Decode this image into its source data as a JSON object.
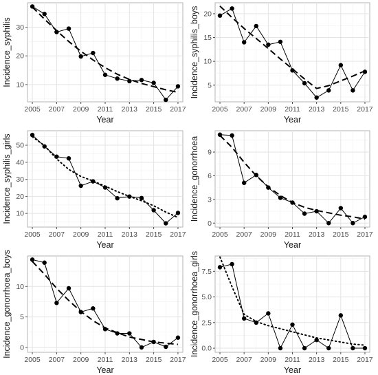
{
  "chart_data": [
    {
      "type": "line",
      "xlabel": "Year",
      "ylabel": "Incidence_syphilis",
      "x": [
        2005,
        2006,
        2007,
        2008,
        2009,
        2010,
        2011,
        2012,
        2013,
        2014,
        2015,
        2016,
        2017
      ],
      "xticks": [
        2005,
        2007,
        2009,
        2011,
        2013,
        2015,
        2017
      ],
      "xlim": [
        2004.6,
        2017.4
      ],
      "ylim": [
        4,
        38.5
      ],
      "yticks": [
        10,
        20,
        30
      ],
      "grid": true,
      "series": [
        {
          "style": "solid-points",
          "values": [
            37.2,
            34.6,
            28.3,
            29.5,
            19.8,
            21.0,
            13.4,
            12.1,
            11.2,
            11.6,
            10.6,
            4.7,
            9.4
          ]
        },
        {
          "style": "dashed-trend",
          "values": [
            37.0,
            32.8,
            28.8,
            25.0,
            21.6,
            18.6,
            15.9,
            13.6,
            11.8,
            10.4,
            9.3,
            8.2,
            7.3
          ]
        }
      ]
    },
    {
      "type": "line",
      "xlabel": "Year",
      "ylabel": "Incidence_syphilis_boys",
      "x": [
        2005,
        2006,
        2007,
        2008,
        2009,
        2010,
        2011,
        2012,
        2013,
        2014,
        2015,
        2016,
        2017
      ],
      "xticks": [
        2005,
        2007,
        2009,
        2011,
        2013,
        2015,
        2017
      ],
      "xlim": [
        2004.6,
        2017.4
      ],
      "ylim": [
        1.5,
        22.3
      ],
      "yticks": [
        5,
        10,
        15,
        20
      ],
      "grid": true,
      "series": [
        {
          "style": "solid-points",
          "values": [
            19.6,
            21.1,
            14.0,
            17.4,
            13.5,
            14.1,
            8.1,
            5.4,
            2.4,
            3.9,
            9.2,
            3.9,
            7.8
          ]
        },
        {
          "style": "dashed-trend",
          "values": [
            21.6,
            19.2,
            16.9,
            14.8,
            12.7,
            10.5,
            8.4,
            6.3,
            4.3,
            4.9,
            5.9,
            6.9,
            8.0
          ]
        }
      ]
    },
    {
      "type": "line",
      "xlabel": "Year",
      "ylabel": "Incidence_syphilis_girls",
      "x": [
        2005,
        2006,
        2007,
        2008,
        2009,
        2010,
        2011,
        2012,
        2013,
        2014,
        2015,
        2016,
        2017
      ],
      "xticks": [
        2005,
        2007,
        2009,
        2011,
        2013,
        2015,
        2017
      ],
      "xlim": [
        2004.6,
        2017.4
      ],
      "ylim": [
        2,
        58.5
      ],
      "yticks": [
        10,
        20,
        30,
        40,
        50
      ],
      "grid": true,
      "series": [
        {
          "style": "solid-points",
          "values": [
            56.0,
            49.3,
            43.3,
            42.3,
            26.2,
            28.8,
            25.2,
            18.9,
            19.9,
            19.0,
            11.9,
            4.2,
            10.3
          ]
        },
        {
          "style": "dotted-trend",
          "values": [
            55.0,
            49.8,
            42.0,
            35.8,
            31.7,
            29.0,
            26.0,
            22.8,
            20.0,
            17.4,
            14.5,
            10.8,
            7.6
          ]
        }
      ]
    },
    {
      "type": "line",
      "xlabel": "Year",
      "ylabel": "Incidence_gonorrhoea",
      "x": [
        2005,
        2006,
        2007,
        2008,
        2009,
        2010,
        2011,
        2012,
        2013,
        2014,
        2015,
        2016,
        2017
      ],
      "xticks": [
        2005,
        2007,
        2009,
        2011,
        2013,
        2015,
        2017
      ],
      "xlim": [
        2004.6,
        2017.4
      ],
      "ylim": [
        -0.5,
        11.7
      ],
      "yticks": [
        0,
        3,
        6,
        9
      ],
      "grid": true,
      "series": [
        {
          "style": "solid-points",
          "values": [
            11.2,
            11.1,
            5.1,
            6.1,
            4.5,
            3.2,
            2.6,
            1.2,
            1.5,
            0.0,
            1.9,
            0.0,
            0.8
          ]
        },
        {
          "style": "dashed-trend",
          "values": [
            11.1,
            9.6,
            7.7,
            6.0,
            4.6,
            3.5,
            2.6,
            2.0,
            1.6,
            1.3,
            1.0,
            0.8,
            0.5
          ]
        }
      ]
    },
    {
      "type": "line",
      "xlabel": "Year",
      "ylabel": "Incidence_gonorrhoea_boys",
      "x": [
        2005,
        2006,
        2007,
        2008,
        2009,
        2010,
        2011,
        2012,
        2013,
        2014,
        2015,
        2016,
        2017
      ],
      "xticks": [
        2005,
        2007,
        2009,
        2011,
        2013,
        2015,
        2017
      ],
      "xlim": [
        2004.6,
        2017.4
      ],
      "ylim": [
        -0.8,
        15.0
      ],
      "yticks": [
        0,
        5,
        10
      ],
      "grid": true,
      "series": [
        {
          "style": "solid-points",
          "values": [
            14.4,
            13.9,
            7.3,
            9.7,
            5.8,
            6.4,
            3.0,
            2.3,
            2.3,
            0.0,
            0.9,
            0.1,
            1.6
          ]
        },
        {
          "style": "dashed-trend",
          "values": [
            14.1,
            12.0,
            9.7,
            7.7,
            5.9,
            4.4,
            3.2,
            2.4,
            1.7,
            1.3,
            0.9,
            0.7,
            0.5
          ]
        }
      ]
    },
    {
      "type": "line",
      "xlabel": "Year",
      "ylabel": "Incidence_gonorrhoea_girls",
      "x": [
        2005,
        2006,
        2007,
        2008,
        2009,
        2010,
        2011,
        2012,
        2013,
        2014,
        2015,
        2016,
        2017
      ],
      "xticks": [
        2005,
        2007,
        2009,
        2011,
        2013,
        2015,
        2017
      ],
      "xlim": [
        2004.6,
        2017.4
      ],
      "ylim": [
        -0.4,
        9.0
      ],
      "yticks": [
        0.0,
        2.5,
        5.0,
        7.5
      ],
      "tick_format": "0.0",
      "grid": true,
      "series": [
        {
          "style": "solid-points",
          "values": [
            7.9,
            8.2,
            2.9,
            2.5,
            3.4,
            0.0,
            2.3,
            0.0,
            0.8,
            0.0,
            3.2,
            0.0,
            0.0
          ]
        },
        {
          "style": "dotted-trend",
          "values": [
            8.9,
            6.0,
            3.3,
            2.6,
            2.2,
            1.9,
            1.6,
            1.3,
            1.0,
            0.8,
            0.6,
            0.4,
            0.3
          ]
        }
      ]
    }
  ]
}
